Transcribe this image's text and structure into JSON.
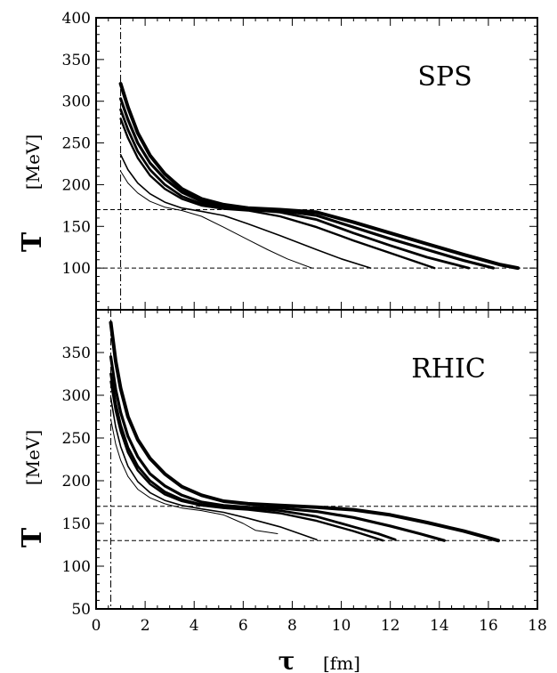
{
  "chart_data": [
    {
      "type": "line",
      "panel_label": "SPS",
      "ylabel_symbol": "T",
      "ylabel_unit": "[MeV]",
      "xlim": [
        0,
        18
      ],
      "ylim": [
        50,
        400
      ],
      "yticks": [
        100,
        150,
        200,
        250,
        300,
        350,
        400
      ],
      "hlines": [
        170,
        100
      ],
      "vline": 1.0,
      "series": [
        {
          "width": 4.0,
          "x": [
            1.0,
            1.3,
            1.7,
            2.2,
            2.8,
            3.5,
            4.3,
            5.2,
            6.2,
            7.5,
            9.0,
            10.5,
            12.0,
            13.5,
            15.0,
            16.5,
            17.2
          ],
          "y": [
            321,
            293,
            262,
            235,
            213,
            195,
            183,
            176,
            172,
            170,
            167,
            155,
            142,
            129,
            116,
            104,
            100
          ]
        },
        {
          "width": 3.2,
          "x": [
            1.0,
            1.3,
            1.7,
            2.2,
            2.8,
            3.5,
            4.3,
            5.2,
            6.2,
            7.5,
            9.0,
            10.5,
            12.0,
            13.5,
            15.0,
            16.2
          ],
          "y": [
            303,
            278,
            250,
            226,
            207,
            191,
            180,
            174,
            171,
            169,
            163,
            149,
            135,
            122,
            109,
            100
          ]
        },
        {
          "width": 2.8,
          "x": [
            1.0,
            1.3,
            1.7,
            2.2,
            2.8,
            3.5,
            4.3,
            5.2,
            6.2,
            7.5,
            9.0,
            10.5,
            12.0,
            13.5,
            15.2
          ],
          "y": [
            290,
            266,
            240,
            218,
            200,
            186,
            177,
            172,
            170,
            167,
            158,
            142,
            127,
            113,
            100
          ]
        },
        {
          "width": 2.4,
          "x": [
            1.0,
            1.3,
            1.7,
            2.2,
            2.8,
            3.5,
            4.3,
            5.2,
            6.2,
            7.5,
            9.0,
            10.5,
            12.0,
            13.8
          ],
          "y": [
            279,
            256,
            232,
            211,
            195,
            183,
            175,
            171,
            169,
            162,
            149,
            133,
            118,
            100
          ]
        },
        {
          "width": 1.6,
          "x": [
            1.0,
            1.3,
            1.7,
            2.2,
            2.8,
            3.5,
            4.3,
            5.2,
            6.2,
            7.5,
            9.0,
            10.0,
            11.2
          ],
          "y": [
            236,
            218,
            202,
            189,
            179,
            172,
            168,
            163,
            153,
            139,
            122,
            111,
            100
          ]
        },
        {
          "width": 1.0,
          "x": [
            1.0,
            1.3,
            1.7,
            2.2,
            2.8,
            3.5,
            4.3,
            5.2,
            6.2,
            7.0,
            7.8,
            8.8
          ],
          "y": [
            216,
            202,
            190,
            180,
            173,
            169,
            162,
            149,
            134,
            122,
            111,
            100
          ]
        }
      ]
    },
    {
      "type": "line",
      "panel_label": "RHIC",
      "ylabel_symbol": "T",
      "ylabel_unit": "[MeV]",
      "xlabel_symbol": "τ",
      "xlabel_unit": "[fm]",
      "xlim": [
        0,
        18
      ],
      "ylim": [
        50,
        400
      ],
      "yticks": [
        50,
        100,
        150,
        200,
        250,
        300,
        350
      ],
      "xticks": [
        0,
        2,
        4,
        6,
        8,
        10,
        12,
        14,
        16,
        18
      ],
      "hlines": [
        170,
        130
      ],
      "vline": 0.6,
      "series": [
        {
          "width": 4.0,
          "x": [
            0.6,
            0.8,
            1.0,
            1.3,
            1.7,
            2.2,
            2.8,
            3.5,
            4.3,
            5.2,
            6.2,
            7.5,
            9.0,
            10.5,
            12.0,
            13.5,
            15.0,
            16.4
          ],
          "y": [
            385,
            340,
            308,
            275,
            248,
            226,
            208,
            193,
            183,
            176,
            173,
            171,
            169,
            166,
            160,
            151,
            141,
            130
          ]
        },
        {
          "width": 3.2,
          "x": [
            0.6,
            0.8,
            1.0,
            1.3,
            1.7,
            2.2,
            2.8,
            3.5,
            4.3,
            5.2,
            6.2,
            7.5,
            9.0,
            10.5,
            12.0,
            13.2,
            14.2
          ],
          "y": [
            345,
            307,
            280,
            252,
            228,
            208,
            194,
            183,
            175,
            171,
            169,
            168,
            164,
            157,
            147,
            138,
            130
          ]
        },
        {
          "width": 2.8,
          "x": [
            0.6,
            0.8,
            1.0,
            1.3,
            1.7,
            2.2,
            2.8,
            3.5,
            4.3,
            5.2,
            6.2,
            7.5,
            9.0,
            10.5,
            11.5,
            12.2
          ],
          "y": [
            325,
            290,
            265,
            239,
            217,
            200,
            187,
            178,
            172,
            169,
            168,
            165,
            158,
            146,
            138,
            131
          ]
        },
        {
          "width": 2.4,
          "x": [
            0.6,
            0.8,
            1.0,
            1.3,
            1.7,
            2.2,
            2.8,
            3.5,
            4.3,
            5.2,
            6.2,
            7.5,
            9.0,
            10.5,
            11.7
          ],
          "y": [
            316,
            282,
            258,
            233,
            212,
            196,
            184,
            176,
            171,
            168,
            166,
            162,
            153,
            141,
            130
          ]
        },
        {
          "width": 1.6,
          "x": [
            0.6,
            0.8,
            1.0,
            1.3,
            1.7,
            2.2,
            2.8,
            3.5,
            4.3,
            5.2,
            6.2,
            7.5,
            8.5,
            9.0
          ],
          "y": [
            297,
            263,
            240,
            217,
            199,
            186,
            177,
            171,
            167,
            163,
            156,
            146,
            136,
            131
          ]
        },
        {
          "width": 1.0,
          "x": [
            0.6,
            0.8,
            1.0,
            1.3,
            1.7,
            2.2,
            2.8,
            3.5,
            4.3,
            5.2,
            6.0,
            6.5,
            7.4
          ],
          "y": [
            272,
            243,
            224,
            205,
            190,
            180,
            173,
            168,
            165,
            160,
            150,
            142,
            138
          ]
        }
      ]
    }
  ]
}
